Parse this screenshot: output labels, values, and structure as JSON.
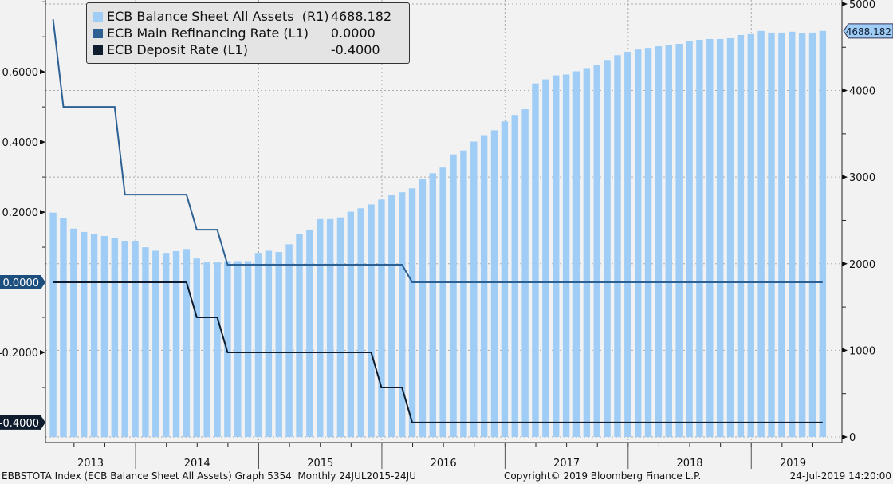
{
  "chart_data": {
    "type": "bar+line",
    "title": "",
    "legend_placement": "top-left",
    "legend": [
      {
        "name": "ECB Balance Sheet All Assets  (R1)",
        "value": "4688.182",
        "color": "#9fcdf6"
      },
      {
        "name": "ECB Main Refinancing Rate (L1)",
        "value": "0.0000",
        "color": "#2d6193"
      },
      {
        "name": "ECB Deposit Rate (L1)",
        "value": "-0.4000",
        "color": "#0e1c2e"
      }
    ],
    "x_axis": {
      "year_labels": [
        "2013",
        "2014",
        "2015",
        "2016",
        "2017",
        "2018",
        "2019"
      ],
      "year_divider_bar_index": [
        8,
        20,
        32,
        44,
        56,
        68
      ]
    },
    "left_axis": {
      "ylim": [
        -0.457,
        0.805
      ],
      "ticks": [
        "0.6000",
        "0.4000",
        "0.2000",
        "0.0000",
        "-0.2000",
        "-0.4000"
      ],
      "tick_values": [
        0.6,
        0.4,
        0.2,
        0,
        -0.2,
        -0.4
      ]
    },
    "right_axis": {
      "ylim": [
        0,
        5110
      ],
      "ticks": [
        "5000",
        "4000",
        "3000",
        "2000",
        "1000",
        "0"
      ],
      "tick_values": [
        5000,
        4000,
        3000,
        2000,
        1000,
        0
      ]
    },
    "grid": true,
    "series": [
      {
        "name": "ECB Balance Sheet All Assets",
        "type": "bar",
        "axis": "R1",
        "values": [
          2590,
          2525,
          2405,
          2367,
          2340,
          2320,
          2300,
          2265,
          2265,
          2190,
          2150,
          2125,
          2145,
          2170,
          2060,
          2020,
          2015,
          2030,
          2030,
          2030,
          2125,
          2150,
          2135,
          2225,
          2340,
          2395,
          2515,
          2515,
          2535,
          2600,
          2640,
          2685,
          2740,
          2795,
          2825,
          2870,
          2975,
          3045,
          3110,
          3262,
          3308,
          3411,
          3485,
          3541,
          3644,
          3718,
          3784,
          4082,
          4129,
          4175,
          4185,
          4222,
          4259,
          4296,
          4352,
          4408,
          4446,
          4473,
          4492,
          4511,
          4530,
          4539,
          4567,
          4585,
          4595,
          4595,
          4604,
          4641,
          4651,
          4688,
          4669,
          4669,
          4679,
          4660,
          4669,
          4688.182
        ]
      },
      {
        "name": "ECB Main Refinancing Rate",
        "type": "line",
        "axis": "L1",
        "values": [
          0.75,
          0.5,
          0.5,
          0.5,
          0.5,
          0.5,
          0.5,
          0.25,
          0.25,
          0.25,
          0.25,
          0.25,
          0.25,
          0.25,
          0.15,
          0.15,
          0.15,
          0.05,
          0.05,
          0.05,
          0.05,
          0.05,
          0.05,
          0.05,
          0.05,
          0.05,
          0.05,
          0.05,
          0.05,
          0.05,
          0.05,
          0.05,
          0.05,
          0.05,
          0.05,
          0,
          0,
          0,
          0,
          0,
          0,
          0,
          0,
          0,
          0,
          0,
          0,
          0,
          0,
          0,
          0,
          0,
          0,
          0,
          0,
          0,
          0,
          0,
          0,
          0,
          0,
          0,
          0,
          0,
          0,
          0,
          0,
          0,
          0,
          0,
          0,
          0,
          0,
          0,
          0,
          0
        ]
      },
      {
        "name": "ECB Deposit Rate",
        "type": "line",
        "axis": "L1",
        "values": [
          0,
          0,
          0,
          0,
          0,
          0,
          0,
          0,
          0,
          0,
          0,
          0,
          0,
          0,
          -0.1,
          -0.1,
          -0.1,
          -0.2,
          -0.2,
          -0.2,
          -0.2,
          -0.2,
          -0.2,
          -0.2,
          -0.2,
          -0.2,
          -0.2,
          -0.2,
          -0.2,
          -0.2,
          -0.2,
          -0.2,
          -0.3,
          -0.3,
          -0.3,
          -0.4,
          -0.4,
          -0.4,
          -0.4,
          -0.4,
          -0.4,
          -0.4,
          -0.4,
          -0.4,
          -0.4,
          -0.4,
          -0.4,
          -0.4,
          -0.4,
          -0.4,
          -0.4,
          -0.4,
          -0.4,
          -0.4,
          -0.4,
          -0.4,
          -0.4,
          -0.4,
          -0.4,
          -0.4,
          -0.4,
          -0.4,
          -0.4,
          -0.4,
          -0.4,
          -0.4,
          -0.4,
          -0.4,
          -0.4,
          -0.4,
          -0.4,
          -0.4,
          -0.4,
          -0.4,
          -0.4,
          -0.4
        ]
      }
    ],
    "last_value_tags": {
      "right": "4688.182",
      "left_main_refi": "0.0000",
      "left_deposit": "-0.4000"
    }
  },
  "footer": {
    "source": "EBBSTOTA Index (ECB Balance Sheet All Assets) Graph 5354  Monthly 24JUL2015-24JU",
    "copyright": "Copyright© 2019 Bloomberg Finance L.P.",
    "timestamp": "24-Jul-2019 14:20:00"
  }
}
